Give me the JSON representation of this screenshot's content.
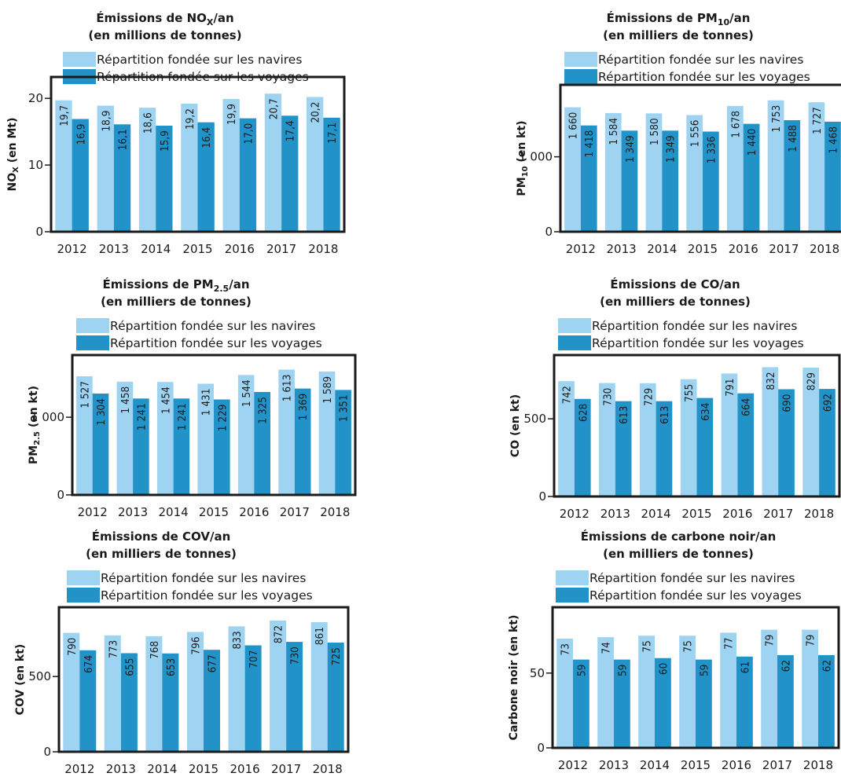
{
  "colors": {
    "navires": "#9fd3f2",
    "voyages": "#2293c9",
    "frame": "#1a1a1a"
  },
  "chart_data": [
    {
      "type": "bar",
      "title_html": "Émissions de NO<tspan font-size=\"11\" dy=\"4\">X</tspan><tspan dy=\"-4\">/an</tspan>",
      "subtitle": "(en millions de tonnes)",
      "ylabel_html": "NO<tspan font-size=\"10\" dy=\"3\">X</tspan><tspan dy=\"-3\"> (en Mt)</tspan>",
      "categories": [
        "2012",
        "2013",
        "2014",
        "2015",
        "2016",
        "2017",
        "2018"
      ],
      "ylim": [
        0,
        23.2
      ],
      "yticks": [
        0,
        10,
        20
      ],
      "ytick_labels": [
        "0",
        "10",
        "20"
      ],
      "series": [
        {
          "name": "Répartition fondée sur les navires",
          "values": [
            19.7,
            18.9,
            18.6,
            19.2,
            19.9,
            20.7,
            20.2
          ],
          "labels": [
            "19,7",
            "18,9",
            "18,6",
            "19,2",
            "19,9",
            "20,7",
            "20,2"
          ]
        },
        {
          "name": "Répartition fondée sur les voyages",
          "values": [
            16.9,
            16.1,
            15.9,
            16.4,
            17.0,
            17.4,
            17.1
          ],
          "labels": [
            "16,9",
            "16,1",
            "15,9",
            "16,4",
            "17,0",
            "17,4",
            "17,1"
          ]
        }
      ]
    },
    {
      "type": "bar",
      "title_html": "Émissions de PM<tspan font-size=\"11\" dy=\"4\">10</tspan><tspan dy=\"-4\">/an</tspan>",
      "subtitle": "(en milliers de tonnes)",
      "ylabel_html": "PM<tspan font-size=\"10\" dy=\"3\">10</tspan><tspan dy=\"-3\"> (en kt)</tspan>",
      "categories": [
        "2012",
        "2013",
        "2014",
        "2015",
        "2016",
        "2017",
        "2018"
      ],
      "ylim": [
        0,
        1960
      ],
      "yticks": [
        0,
        1000
      ],
      "ytick_labels": [
        "0",
        "1 000"
      ],
      "series": [
        {
          "name": "Répartition fondée sur les navires",
          "values": [
            1660,
            1584,
            1580,
            1556,
            1678,
            1753,
            1727
          ],
          "labels": [
            "1 660",
            "1 584",
            "1 580",
            "1 556",
            "1 678",
            "1 753",
            "1 727"
          ]
        },
        {
          "name": "Répartition fondée sur les voyages",
          "values": [
            1418,
            1349,
            1349,
            1336,
            1440,
            1488,
            1468
          ],
          "labels": [
            "1 418",
            "1 349",
            "1 349",
            "1 336",
            "1 440",
            "1 488",
            "1 468"
          ]
        }
      ]
    },
    {
      "type": "bar",
      "title_html": "Émissions de PM<tspan font-size=\"11\" dy=\"4\">2.5</tspan><tspan dy=\"-4\">/an</tspan>",
      "subtitle": "(en milliers de tonnes)",
      "ylabel_html": "PM<tspan font-size=\"10\" dy=\"3\">2.5</tspan><tspan dy=\"-3\"> (en kt)</tspan>",
      "categories": [
        "2012",
        "2013",
        "2014",
        "2015",
        "2016",
        "2017",
        "2018"
      ],
      "ylim": [
        0,
        1800
      ],
      "yticks": [
        0,
        1000
      ],
      "ytick_labels": [
        "0",
        "1 000"
      ],
      "series": [
        {
          "name": "Répartition fondée sur les navires",
          "values": [
            1527,
            1458,
            1454,
            1431,
            1544,
            1613,
            1589
          ],
          "labels": [
            "1 527",
            "1 458",
            "1 454",
            "1 431",
            "1 544",
            "1 613",
            "1 589"
          ]
        },
        {
          "name": "Répartition fondée sur les voyages",
          "values": [
            1304,
            1241,
            1241,
            1229,
            1325,
            1369,
            1351
          ],
          "labels": [
            "1 304",
            "1 241",
            "1 241",
            "1 229",
            "1 325",
            "1 369",
            "1 351"
          ]
        }
      ]
    },
    {
      "type": "bar",
      "title_html": "Émissions de CO/an",
      "subtitle": "(en milliers de tonnes)",
      "ylabel_html": "CO (en kt)",
      "categories": [
        "2012",
        "2013",
        "2014",
        "2015",
        "2016",
        "2017",
        "2018"
      ],
      "ylim": [
        0,
        910
      ],
      "yticks": [
        0,
        500
      ],
      "ytick_labels": [
        "0",
        "500"
      ],
      "series": [
        {
          "name": "Répartition fondée sur les navires",
          "values": [
            742,
            730,
            729,
            755,
            791,
            832,
            829
          ],
          "labels": [
            "742",
            "730",
            "729",
            "755",
            "791",
            "832",
            "829"
          ]
        },
        {
          "name": "Répartition fondée sur les voyages",
          "values": [
            628,
            613,
            613,
            634,
            664,
            690,
            692
          ],
          "labels": [
            "628",
            "613",
            "613",
            "634",
            "664",
            "690",
            "692"
          ]
        }
      ]
    },
    {
      "type": "bar",
      "title_html": "Émissions de COV/an",
      "subtitle": "(en milliers de tonnes)",
      "ylabel_html": "COV (en kt)",
      "categories": [
        "2012",
        "2013",
        "2014",
        "2015",
        "2016",
        "2017",
        "2018"
      ],
      "ylim": [
        0,
        960
      ],
      "yticks": [
        0,
        500
      ],
      "ytick_labels": [
        "0",
        "500"
      ],
      "series": [
        {
          "name": "Répartition fondée sur les navires",
          "values": [
            790,
            773,
            768,
            796,
            833,
            872,
            861
          ],
          "labels": [
            "790",
            "773",
            "768",
            "796",
            "833",
            "872",
            "861"
          ]
        },
        {
          "name": "Répartition fondée sur les voyages",
          "values": [
            674,
            655,
            653,
            677,
            707,
            730,
            725
          ],
          "labels": [
            "674",
            "655",
            "653",
            "677",
            "707",
            "730",
            "725"
          ]
        }
      ]
    },
    {
      "type": "bar",
      "title_html": "Émissions de carbone noir/an",
      "subtitle": "(en milliers de tonnes)",
      "ylabel_html": "Carbone noir  (en kt)",
      "categories": [
        "2012",
        "2013",
        "2014",
        "2015",
        "2016",
        "2017",
        "2018"
      ],
      "ylim": [
        0,
        94
      ],
      "yticks": [
        0,
        50
      ],
      "ytick_labels": [
        "0",
        "50"
      ],
      "series": [
        {
          "name": "Répartition fondée sur les navires",
          "values": [
            73,
            74,
            75,
            75,
            77,
            79,
            79
          ],
          "labels": [
            "73",
            "74",
            "75",
            "75",
            "77",
            "79",
            "79"
          ]
        },
        {
          "name": "Répartition fondée sur les voyages",
          "values": [
            59,
            59,
            60,
            59,
            61,
            62,
            62
          ],
          "labels": [
            "59",
            "59",
            "60",
            "59",
            "61",
            "62",
            "62"
          ]
        }
      ]
    }
  ]
}
